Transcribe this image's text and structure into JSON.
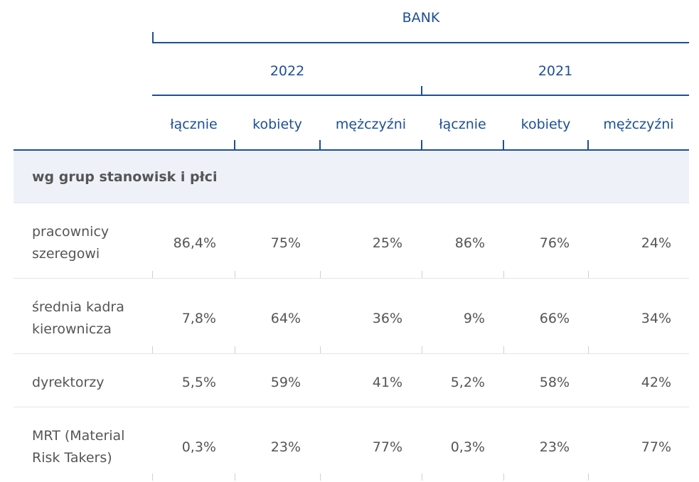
{
  "header": {
    "group": "BANK",
    "years": [
      "2022",
      "2021"
    ],
    "columns": [
      "łącznie",
      "kobiety",
      "mężczyźni",
      "łącznie",
      "kobiety",
      "mężczyźni"
    ]
  },
  "section": {
    "label": "wg grup stanowisk i płci"
  },
  "rows": [
    {
      "label": "pracownicy szeregowi",
      "values": [
        "86,4%",
        "75%",
        "25%",
        "86%",
        "76%",
        "24%"
      ]
    },
    {
      "label": "średnia kadra kierownicza",
      "values": [
        "7,8%",
        "64%",
        "36%",
        "9%",
        "66%",
        "34%"
      ]
    },
    {
      "label": "dyrektorzy",
      "values": [
        "5,5%",
        "59%",
        "41%",
        "5,2%",
        "58%",
        "42%"
      ]
    },
    {
      "label": "MRT (Material Risk Takers)",
      "values": [
        "0,3%",
        "23%",
        "77%",
        "0,3%",
        "23%",
        "77%"
      ]
    }
  ]
}
